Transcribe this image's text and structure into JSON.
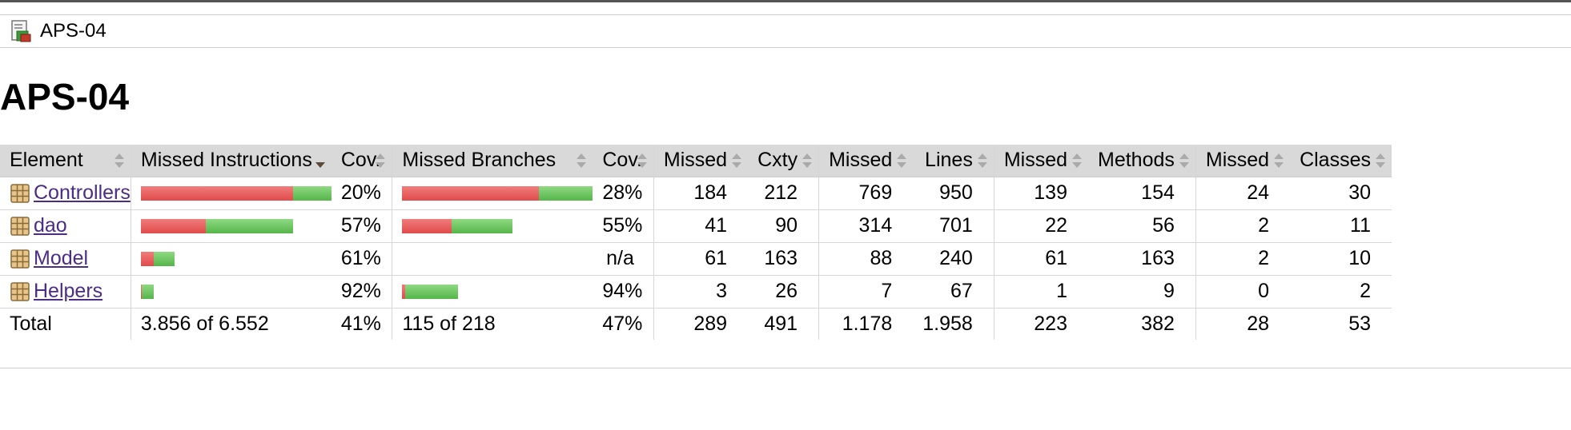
{
  "breadcrumb": {
    "label": "APS-04",
    "icon": "report-icon"
  },
  "page": {
    "title": "APS-04"
  },
  "table": {
    "headers": {
      "element": "Element",
      "missed_instructions": "Missed Instructions",
      "cov_instructions": "Cov.",
      "missed_branches": "Missed Branches",
      "cov_branches": "Cov.",
      "missed_cxty": "Missed",
      "cxty": "Cxty",
      "missed_lines": "Missed",
      "lines": "Lines",
      "missed_methods": "Missed",
      "methods": "Methods",
      "missed_classes": "Missed",
      "classes": "Classes"
    },
    "sorted_column": "missed_instructions",
    "colors": {
      "missed": "#e14b4b",
      "covered": "#55b54a"
    },
    "rows": [
      {
        "name": "Controllers",
        "icon": "package-icon",
        "instr_bar_missed_fraction": 0.4,
        "instr_bar_covered_fraction": 0.1,
        "instr_cov": "20%",
        "branch_bar_missed_fraction": 0.36,
        "branch_bar_covered_fraction": 0.14,
        "branch_cov": "28%",
        "missed_cxty": "184",
        "cxty": "212",
        "missed_lines": "769",
        "lines": "950",
        "missed_methods": "139",
        "methods": "154",
        "missed_classes": "24",
        "classes": "30"
      },
      {
        "name": "dao",
        "icon": "package-icon",
        "instr_bar_missed_fraction": 0.17,
        "instr_bar_covered_fraction": 0.23,
        "instr_cov": "57%",
        "branch_bar_missed_fraction": 0.13,
        "branch_bar_covered_fraction": 0.16,
        "branch_cov": "55%",
        "missed_cxty": "41",
        "cxty": "90",
        "missed_lines": "314",
        "lines": "701",
        "missed_methods": "22",
        "methods": "56",
        "missed_classes": "2",
        "classes": "11"
      },
      {
        "name": "Model",
        "icon": "package-icon",
        "instr_bar_missed_fraction": 0.034,
        "instr_bar_covered_fraction": 0.055,
        "instr_cov": "61%",
        "branch_bar_missed_fraction": 0,
        "branch_bar_covered_fraction": 0,
        "branch_cov": "n/a",
        "missed_cxty": "61",
        "cxty": "163",
        "missed_lines": "88",
        "lines": "240",
        "missed_methods": "61",
        "methods": "163",
        "missed_classes": "2",
        "classes": "10"
      },
      {
        "name": "Helpers",
        "icon": "package-icon",
        "instr_bar_missed_fraction": 0.003,
        "instr_bar_covered_fraction": 0.031,
        "instr_cov": "92%",
        "branch_bar_missed_fraction": 0.008,
        "branch_bar_covered_fraction": 0.139,
        "branch_cov": "94%",
        "missed_cxty": "3",
        "cxty": "26",
        "missed_lines": "7",
        "lines": "67",
        "missed_methods": "1",
        "methods": "9",
        "missed_classes": "0",
        "classes": "2"
      }
    ],
    "total": {
      "label": "Total",
      "missed_instructions": "3.856 of 6.552",
      "instr_cov": "41%",
      "missed_branches": "115 of 218",
      "branch_cov": "47%",
      "missed_cxty": "289",
      "cxty": "491",
      "missed_lines": "1.178",
      "lines": "1.958",
      "missed_methods": "223",
      "methods": "382",
      "missed_classes": "28",
      "classes": "53"
    }
  }
}
